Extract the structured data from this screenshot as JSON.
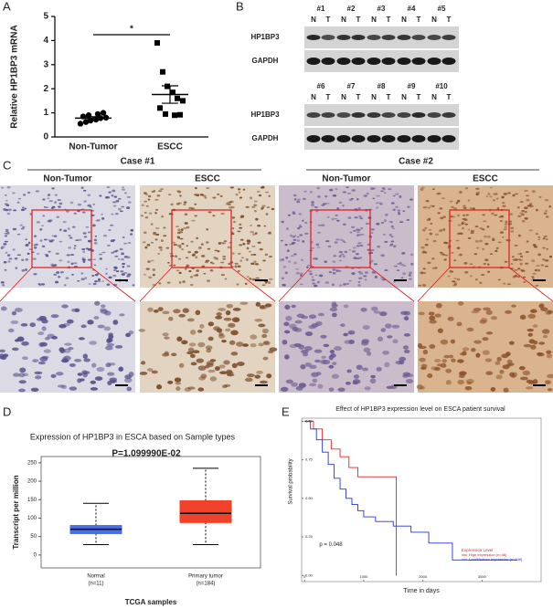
{
  "chart_data": [
    {
      "panel": "A",
      "type": "scatter",
      "ylabel": "Relative HP1BP3 mRNA",
      "ylim": [
        0,
        5
      ],
      "yticks": [
        0,
        1,
        2,
        3,
        4,
        5
      ],
      "significance": "*",
      "color": "#000000",
      "groups": [
        {
          "name": "Non-Tumor",
          "marker": "circle",
          "values": [
            0.55,
            0.62,
            0.68,
            0.72,
            0.78,
            0.8,
            0.85,
            0.9,
            0.95,
            1.0
          ],
          "mean": 0.78,
          "sem": 0.06
        },
        {
          "name": "ESCC",
          "marker": "square",
          "values": [
            3.9,
            2.7,
            2.1,
            1.85,
            1.6,
            1.5,
            1.2,
            0.95,
            0.9,
            0.92
          ],
          "mean": 1.76,
          "sem": 0.36
        }
      ]
    },
    {
      "panel": "D",
      "type": "box",
      "title": "Expression of HP1BP3 in ESCA based on Sample types",
      "annotation": "P=1.099990E-02",
      "ylabel": "Transcript per million",
      "xlabel": "TCGA samples",
      "ylim": [
        -35,
        267
      ],
      "yticks": [
        0,
        50,
        100,
        150,
        200,
        250
      ],
      "categories": [
        "Normal",
        "Primary tumor"
      ],
      "category_notes": [
        "(n=11)",
        "(n=184)"
      ],
      "colors": [
        "#4a6fe3",
        "#f0412a"
      ],
      "boxes": [
        {
          "min": 28,
          "q1": 58,
          "median": 70,
          "q3": 80,
          "max": 140
        },
        {
          "min": 28,
          "q1": 88,
          "median": 113,
          "q3": 147,
          "max": 235
        }
      ]
    },
    {
      "panel": "E",
      "type": "line",
      "title": "Effect of HP1BP3 expression level on ESCA patient survival",
      "ylabel": "Survival probability",
      "xlabel": "Time in days",
      "annotation": "p = 0.048",
      "xlim": [
        -50,
        4000
      ],
      "ylim": [
        -0.04,
        1.02
      ],
      "xticks": [
        0,
        1000,
        2000,
        3000
      ],
      "yticks": [
        {
          "value": 0,
          "label": "0.00"
        },
        {
          "value": 0.25,
          "label": "0.25"
        },
        {
          "value": 0.5,
          "label": "0.50"
        },
        {
          "value": 0.75,
          "label": "0.75"
        },
        {
          "value": 1,
          "label": "1.00"
        }
      ],
      "legend_title": "Expression Level",
      "legend_position": "lower right",
      "series": [
        {
          "name": "High expression (n=46)",
          "color": "#e8202a",
          "x": [
            0,
            150,
            150,
            300,
            300,
            450,
            450,
            600,
            600,
            750,
            750,
            900,
            900,
            1550,
            1550
          ],
          "y": [
            1,
            1,
            0.95,
            0.95,
            0.88,
            0.88,
            0.82,
            0.82,
            0.77,
            0.77,
            0.7,
            0.7,
            0.64,
            0.64,
            0
          ]
        },
        {
          "name": "Low/Medium-expression (n=138)",
          "color": "#2233dd",
          "x": [
            0,
            100,
            100,
            200,
            200,
            300,
            300,
            400,
            400,
            500,
            500,
            600,
            600,
            700,
            700,
            800,
            800,
            900,
            900,
            1000,
            1000,
            1200,
            1200,
            1500,
            1500,
            1800,
            1800,
            2100,
            2100,
            2500,
            2500,
            3600
          ],
          "y": [
            1,
            1,
            0.95,
            0.95,
            0.88,
            0.88,
            0.8,
            0.8,
            0.72,
            0.72,
            0.63,
            0.63,
            0.56,
            0.56,
            0.5,
            0.5,
            0.46,
            0.46,
            0.42,
            0.42,
            0.38,
            0.38,
            0.35,
            0.35,
            0.32,
            0.32,
            0.28,
            0.28,
            0.21,
            0.21,
            0.1,
            0.1
          ]
        }
      ]
    }
  ],
  "western_blot": {
    "panel": "B",
    "lanes": [
      "N",
      "T"
    ],
    "rows": [
      "HP1BP3",
      "GAPDH"
    ],
    "blocks": [
      [
        "#1",
        "#2",
        "#3",
        "#4",
        "#5"
      ],
      [
        "#6",
        "#7",
        "#8",
        "#9",
        "#10"
      ]
    ]
  },
  "histology": {
    "panel": "C",
    "cases": [
      {
        "title": "Case #1",
        "columns": [
          "Non-Tumor",
          "ESCC"
        ]
      },
      {
        "title": "Case #2",
        "columns": [
          "Non-Tumor",
          "ESCC"
        ]
      }
    ]
  }
}
